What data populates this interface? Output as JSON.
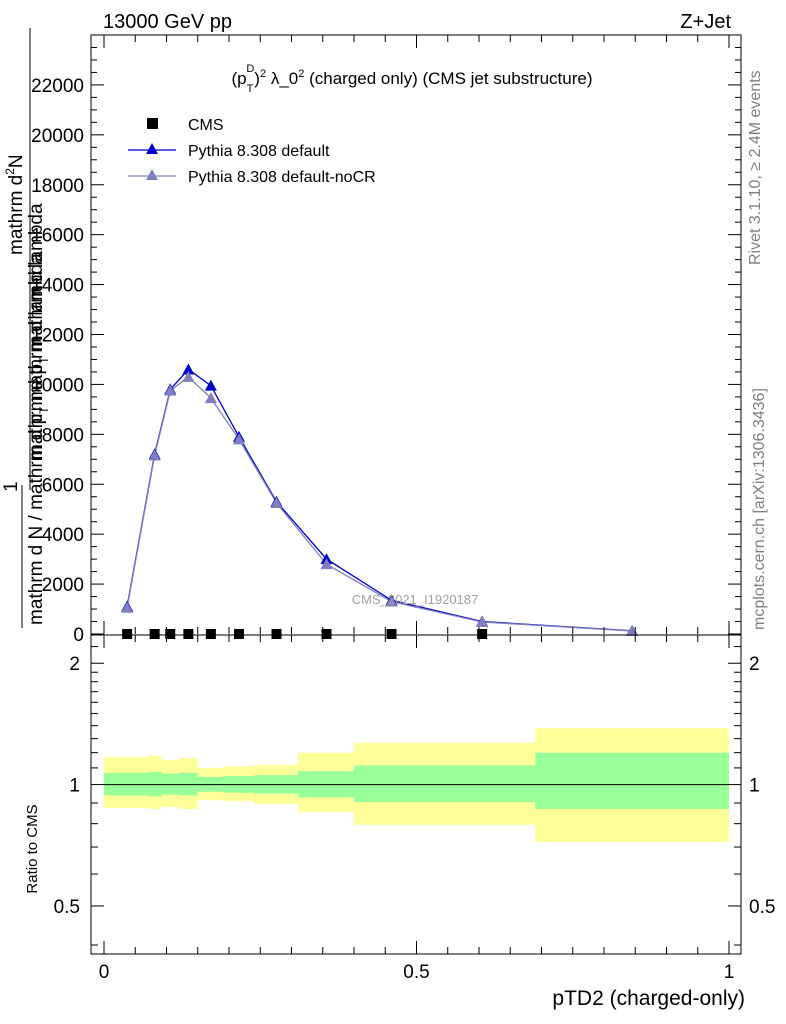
{
  "header": {
    "left_label": "13000 GeV pp",
    "right_label": "Z+Jet"
  },
  "side_labels": {
    "rivet": "Rivet 3.1.10, ≥ 2.4M events",
    "mcplots": "mcplots.cern.ch [arXiv:1306.3436]"
  },
  "chart_data": [
    {
      "type": "line",
      "title_base": "(p",
      "title_sub": "T",
      "title_sup": "D",
      "title_exp": "2",
      "title_rest": " λ_0",
      "title_exp2": "2",
      "title_tail": " (charged only) (CMS jet substructure)",
      "ylabel_top": "mathrm d",
      "ylabel_top_sup": "2",
      "ylabel_top_rest": "N",
      "ylabel_den": "mathrm d p",
      "ylabel_den_sub": "T",
      "ylabel_den_rest": " mathrm d lambda",
      "ylabel_one": "1",
      "ylabel_bottom": "mathrm d N / mathrm d p",
      "ylabel_bottom_sub": "T",
      "ylabel_bottom_rest": " mathrm d lambda",
      "watermark": "CMS_2021_I1920187",
      "xlim": [
        0,
        1
      ],
      "ylim": [
        0,
        24000
      ],
      "yticks": [
        "0",
        "2000",
        "4000",
        "6000",
        "8000",
        "10000",
        "12000",
        "14000",
        "16000",
        "18000",
        "20000",
        "22000"
      ],
      "ytick_values": [
        0,
        2000,
        4000,
        6000,
        8000,
        10000,
        12000,
        14000,
        16000,
        18000,
        20000,
        22000
      ],
      "legend_position": "top-left",
      "series": [
        {
          "name": "CMS",
          "marker": "square",
          "color": "#000000",
          "x": [
            0.037,
            0.081,
            0.106,
            0.135,
            0.171,
            0.216,
            0.276,
            0.356,
            0.46,
            0.605
          ],
          "y": [
            0,
            0,
            0,
            0,
            0,
            0,
            0,
            0,
            0,
            0
          ]
        },
        {
          "name": "Pythia 8.308 default",
          "marker": "triangle",
          "color": "#0000cc",
          "x": [
            0.037,
            0.081,
            0.106,
            0.135,
            0.171,
            0.216,
            0.276,
            0.356,
            0.46,
            0.605,
            0.845
          ],
          "y": [
            1100,
            7200,
            9800,
            10600,
            9950,
            7900,
            5300,
            3000,
            1350,
            500,
            130
          ]
        },
        {
          "name": "Pythia 8.308 default-noCR",
          "marker": "triangle",
          "color": "#7f7fbf",
          "x": [
            0.037,
            0.081,
            0.106,
            0.135,
            0.171,
            0.216,
            0.276,
            0.356,
            0.46,
            0.605,
            0.845
          ],
          "y": [
            1050,
            7150,
            9750,
            10300,
            9450,
            7800,
            5250,
            2800,
            1300,
            480,
            120
          ]
        }
      ]
    },
    {
      "type": "area",
      "ylabel": "Ratio to CMS",
      "xlabel": "pTD2 (charged-only)",
      "xlim": [
        0,
        1
      ],
      "ylim": [
        0.38,
        2.35
      ],
      "log_y": true,
      "yticks": [
        "0.5",
        "1",
        "2"
      ],
      "ytick_values": [
        0.5,
        1,
        2
      ],
      "xticks": [
        "0",
        "0.5",
        "1"
      ],
      "xtick_values": [
        0,
        0.5,
        1
      ],
      "band_colors": {
        "outer": "#ffff99",
        "inner": "#99ff99",
        "line": "#000000"
      },
      "bins": [
        {
          "lo": 0.0,
          "hi": 0.071,
          "in_lo": 0.94,
          "in_hi": 1.07,
          "out_lo": 0.875,
          "out_hi": 1.17
        },
        {
          "lo": 0.071,
          "hi": 0.092,
          "in_lo": 0.935,
          "in_hi": 1.075,
          "out_lo": 0.87,
          "out_hi": 1.18
        },
        {
          "lo": 0.092,
          "hi": 0.12,
          "in_lo": 0.945,
          "in_hi": 1.065,
          "out_lo": 0.88,
          "out_hi": 1.15
        },
        {
          "lo": 0.12,
          "hi": 0.15,
          "in_lo": 0.94,
          "in_hi": 1.07,
          "out_lo": 0.87,
          "out_hi": 1.165
        },
        {
          "lo": 0.15,
          "hi": 0.19,
          "in_lo": 0.96,
          "in_hi": 1.045,
          "out_lo": 0.915,
          "out_hi": 1.1
        },
        {
          "lo": 0.19,
          "hi": 0.24,
          "in_lo": 0.955,
          "in_hi": 1.05,
          "out_lo": 0.91,
          "out_hi": 1.11
        },
        {
          "lo": 0.24,
          "hi": 0.31,
          "in_lo": 0.95,
          "in_hi": 1.055,
          "out_lo": 0.895,
          "out_hi": 1.12
        },
        {
          "lo": 0.31,
          "hi": 0.4,
          "in_lo": 0.93,
          "in_hi": 1.08,
          "out_lo": 0.855,
          "out_hi": 1.2
        },
        {
          "lo": 0.4,
          "hi": 0.69,
          "in_lo": 0.905,
          "in_hi": 1.115,
          "out_lo": 0.795,
          "out_hi": 1.27
        },
        {
          "lo": 0.69,
          "hi": 1.0,
          "in_lo": 0.87,
          "in_hi": 1.2,
          "out_lo": 0.72,
          "out_hi": 1.38
        }
      ]
    }
  ]
}
